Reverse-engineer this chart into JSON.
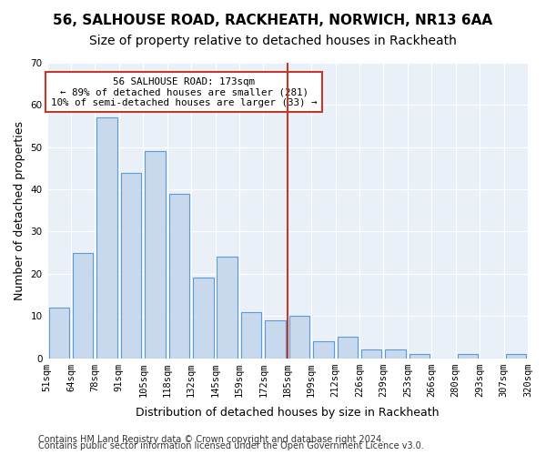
{
  "title1": "56, SALHOUSE ROAD, RACKHEATH, NORWICH, NR13 6AA",
  "title2": "Size of property relative to detached houses in Rackheath",
  "xlabel": "Distribution of detached houses by size in Rackheath",
  "ylabel": "Number of detached properties",
  "footer1": "Contains HM Land Registry data © Crown copyright and database right 2024.",
  "footer2": "Contains public sector information licensed under the Open Government Licence v3.0.",
  "tick_labels": [
    "51sqm",
    "64sqm",
    "78sqm",
    "91sqm",
    "105sqm",
    "118sqm",
    "132sqm",
    "145sqm",
    "159sqm",
    "172sqm",
    "185sqm",
    "199sqm",
    "212sqm",
    "226sqm",
    "239sqm",
    "253sqm",
    "266sqm",
    "280sqm",
    "293sqm",
    "307sqm",
    "320sqm"
  ],
  "values": [
    12,
    25,
    57,
    44,
    49,
    39,
    19,
    24,
    11,
    9,
    10,
    4,
    5,
    2,
    2,
    1,
    0,
    1,
    0,
    1
  ],
  "bar_color": "#c9d9ed",
  "bar_edge_color": "#5b9bd5",
  "vline_pos": 9.5,
  "vline_color": "#c0392b",
  "annotation_text": "56 SALHOUSE ROAD: 173sqm\n← 89% of detached houses are smaller (281)\n10% of semi-detached houses are larger (33) →",
  "annotation_box_color": "#ffffff",
  "annotation_box_edge": "#c0392b",
  "ylim": [
    0,
    70
  ],
  "yticks": [
    0,
    10,
    20,
    30,
    40,
    50,
    60,
    70
  ],
  "bg_color": "#eaf0f8",
  "grid_color": "#ffffff",
  "title1_fontsize": 11,
  "title2_fontsize": 10,
  "xlabel_fontsize": 9,
  "ylabel_fontsize": 9,
  "tick_fontsize": 7.5,
  "footer_fontsize": 7
}
